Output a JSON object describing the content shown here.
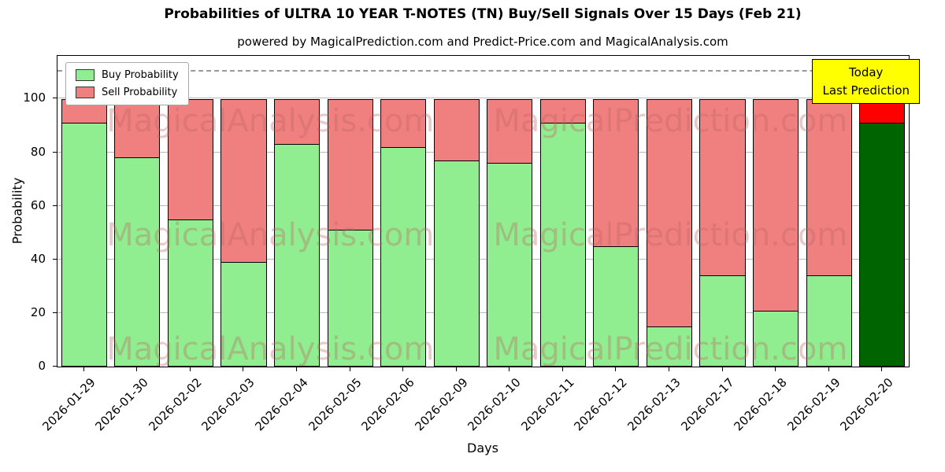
{
  "chart": {
    "title": "Probabilities of ULTRA 10 YEAR T-NOTES (TN) Buy/Sell Signals Over 15 Days (Feb 21)",
    "subtitle": "powered by MagicalPrediction.com and Predict-Price.com and MagicalAnalysis.com",
    "xlabel": "Days",
    "ylabel": "Probability",
    "legend": [
      {
        "label": "Buy Probability",
        "color": "#90EE90"
      },
      {
        "label": "Sell Probability",
        "color": "#F08080"
      }
    ],
    "annotation": {
      "line1": "Today",
      "line2": "Last Prediction",
      "bg": "#FFFF00",
      "border": "#000000"
    },
    "watermarks": {
      "texts": [
        "MagicalAnalysis.com",
        "MagicalPrediction.com"
      ],
      "color": "rgba(190,100,100,0.35)"
    }
  },
  "chart_data": {
    "type": "bar",
    "stacked": true,
    "title": "Probabilities of ULTRA 10 YEAR T-NOTES (TN) Buy/Sell Signals Over 15 Days (Feb 21)",
    "xlabel": "Days",
    "ylabel": "Probability",
    "categories": [
      "2026-01-29",
      "2026-01-30",
      "2026-02-02",
      "2026-02-03",
      "2026-02-04",
      "2026-02-05",
      "2026-02-06",
      "2026-02-09",
      "2026-02-10",
      "2026-02-11",
      "2026-02-12",
      "2026-02-13",
      "2026-02-17",
      "2026-02-18",
      "2026-02-19",
      "2026-02-20"
    ],
    "series": [
      {
        "name": "Buy Probability",
        "color": "#90EE90",
        "values": [
          91,
          78,
          55,
          39,
          83,
          51,
          82,
          77,
          76,
          91,
          45,
          15,
          34,
          21,
          34,
          91
        ]
      },
      {
        "name": "Sell Probability",
        "color": "#F08080",
        "values": [
          9,
          22,
          45,
          61,
          17,
          49,
          18,
          23,
          24,
          9,
          55,
          85,
          66,
          79,
          66,
          9
        ]
      }
    ],
    "today_bar": {
      "index": 15,
      "buy_color": "#006400",
      "sell_color": "#FF0000"
    },
    "ylim": [
      0,
      116
    ],
    "yticks": [
      0,
      20,
      40,
      60,
      80,
      100
    ],
    "dashed_line_y": 110,
    "grid": true,
    "legend_position": "upper left"
  }
}
